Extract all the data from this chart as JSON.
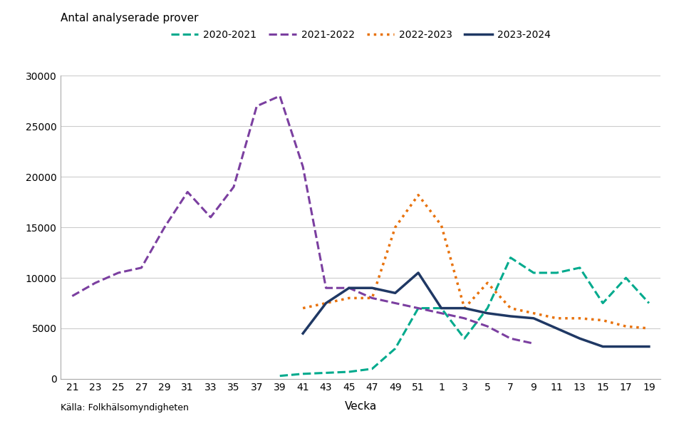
{
  "title_ylabel": "Antal analyserade prover",
  "xlabel": "Vecka",
  "source": "Källa: Folkhälsomyndigheten",
  "ylim": [
    0,
    30000
  ],
  "yticks": [
    0,
    5000,
    10000,
    15000,
    20000,
    25000,
    30000
  ],
  "x_labels": [
    "21",
    "23",
    "25",
    "27",
    "29",
    "31",
    "33",
    "35",
    "37",
    "39",
    "41",
    "43",
    "45",
    "47",
    "49",
    "51",
    "1",
    "3",
    "5",
    "7",
    "9",
    "11",
    "13",
    "15",
    "17",
    "19"
  ],
  "series": [
    {
      "label": "2020-2021",
      "color": "#00AA8D",
      "linestyle": "dashed",
      "linewidth": 2.2,
      "values": [
        null,
        null,
        null,
        null,
        null,
        null,
        null,
        null,
        null,
        300,
        500,
        600,
        700,
        1000,
        3000,
        7000,
        7000,
        4000,
        7000,
        12000,
        10500,
        10500,
        11000,
        7500,
        10000,
        7500
      ]
    },
    {
      "label": "2021-2022",
      "color": "#7B3FA0",
      "linestyle": "dashed",
      "linewidth": 2.2,
      "values": [
        8200,
        9500,
        10500,
        11000,
        15000,
        18500,
        16000,
        19000,
        27000,
        28000,
        21000,
        9000,
        9000,
        8000,
        7500,
        7000,
        6500,
        6000,
        5200,
        4000,
        3500,
        null,
        null,
        null,
        null,
        null
      ]
    },
    {
      "label": "2022-2023",
      "color": "#E8720C",
      "linestyle": "dotted",
      "linewidth": 2.5,
      "values": [
        null,
        null,
        null,
        null,
        null,
        null,
        null,
        null,
        null,
        null,
        7000,
        7500,
        8000,
        8000,
        15000,
        18200,
        15200,
        7000,
        9500,
        7000,
        6500,
        6000,
        6000,
        5800,
        5200,
        5000
      ]
    },
    {
      "label": "2023-2024",
      "color": "#1F3864",
      "linestyle": "solid",
      "linewidth": 2.5,
      "values": [
        null,
        null,
        null,
        null,
        null,
        null,
        null,
        null,
        null,
        null,
        4500,
        7500,
        9000,
        9000,
        8500,
        10500,
        7000,
        7000,
        6500,
        6200,
        6000,
        5000,
        4000,
        3200,
        3200,
        3200
      ]
    }
  ]
}
